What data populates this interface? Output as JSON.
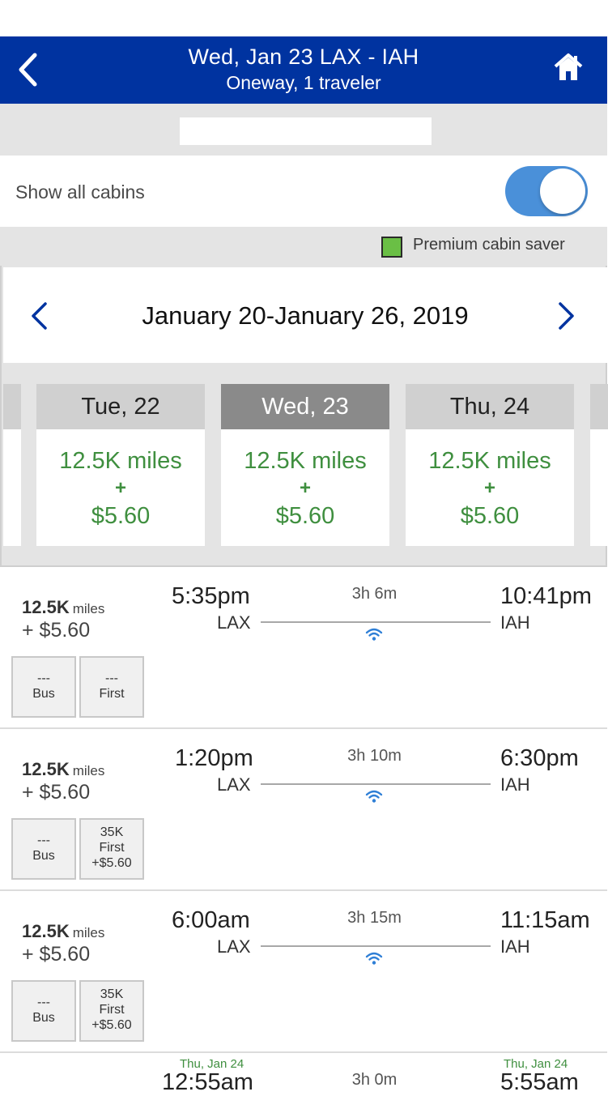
{
  "header": {
    "title": "Wed, Jan 23 LAX - IAH",
    "subtitle": "Oneway, 1 traveler",
    "back_icon": "chevron-left-icon",
    "home_icon": "home-icon",
    "color": "#0033a0"
  },
  "filters": {
    "show_all_cabins_label": "Show all cabins",
    "show_all_cabins_on": true,
    "legend_label": "Premium cabin saver",
    "legend_color": "#6abf45"
  },
  "week": {
    "range": "January 20-January 26, 2019",
    "days": [
      {
        "label": "Tue, 22",
        "miles": "12.5K miles",
        "plus": "+",
        "cash": "$5.60",
        "selected": false
      },
      {
        "label": "Wed, 23",
        "miles": "12.5K miles",
        "plus": "+",
        "cash": "$5.60",
        "selected": true
      },
      {
        "label": "Thu, 24",
        "miles": "12.5K miles",
        "plus": "+",
        "cash": "$5.60",
        "selected": false
      }
    ]
  },
  "flights": [
    {
      "miles": "12.5K",
      "miles_unit": "miles",
      "cash": "+ $5.60",
      "dep_time": "5:35pm",
      "dep_code": "LAX",
      "duration": "3h 6m",
      "arr_time": "10:41pm",
      "arr_code": "IAH",
      "bus": {
        "line1": "---",
        "line2": "Bus"
      },
      "first": {
        "line1": "---",
        "line2": "First",
        "line3": ""
      }
    },
    {
      "miles": "12.5K",
      "miles_unit": "miles",
      "cash": "+ $5.60",
      "dep_time": "1:20pm",
      "dep_code": "LAX",
      "duration": "3h 10m",
      "arr_time": "6:30pm",
      "arr_code": "IAH",
      "bus": {
        "line1": "---",
        "line2": "Bus"
      },
      "first": {
        "line1": "35K",
        "line2": "First",
        "line3": "+$5.60"
      }
    },
    {
      "miles": "12.5K",
      "miles_unit": "miles",
      "cash": "+ $5.60",
      "dep_time": "6:00am",
      "dep_code": "LAX",
      "duration": "3h 15m",
      "arr_time": "11:15am",
      "arr_code": "IAH",
      "bus": {
        "line1": "---",
        "line2": "Bus"
      },
      "first": {
        "line1": "35K",
        "line2": "First",
        "line3": "+$5.60"
      }
    }
  ],
  "partial_flight": {
    "dep_day": "Thu, Jan 24",
    "dep_time": "12:55am",
    "duration": "3h 0m",
    "arr_day": "Thu, Jan 24",
    "arr_time": "5:55am"
  }
}
